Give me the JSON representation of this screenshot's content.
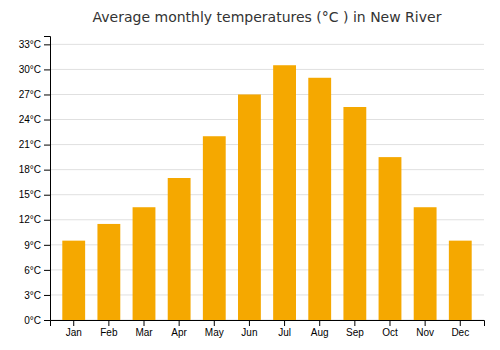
{
  "chart_data": {
    "type": "bar",
    "title": "Average monthly temperatures (°C ) in New River",
    "categories": [
      "Jan",
      "Feb",
      "Mar",
      "Apr",
      "May",
      "Jun",
      "Jul",
      "Aug",
      "Sep",
      "Oct",
      "Nov",
      "Dec"
    ],
    "values": [
      9.5,
      11.5,
      13.5,
      17.0,
      22.0,
      27.0,
      30.5,
      29.0,
      25.5,
      19.5,
      13.5,
      9.5
    ],
    "color": "#F5A800",
    "ylim": [
      0,
      34
    ],
    "yticks": [
      {
        "value": 0,
        "label": "0°C"
      },
      {
        "value": 3,
        "label": "3°C"
      },
      {
        "value": 6,
        "label": "6°C"
      },
      {
        "value": 9,
        "label": "9°C"
      },
      {
        "value": 12,
        "label": "12°C"
      },
      {
        "value": 15,
        "label": "15°C"
      },
      {
        "value": 18,
        "label": "18°C"
      },
      {
        "value": 21,
        "label": "21°C"
      },
      {
        "value": 24,
        "label": "24°C"
      },
      {
        "value": 27,
        "label": "27°C"
      },
      {
        "value": 30,
        "label": "30°C"
      },
      {
        "value": 33,
        "label": "33°C"
      }
    ],
    "grid": true
  }
}
